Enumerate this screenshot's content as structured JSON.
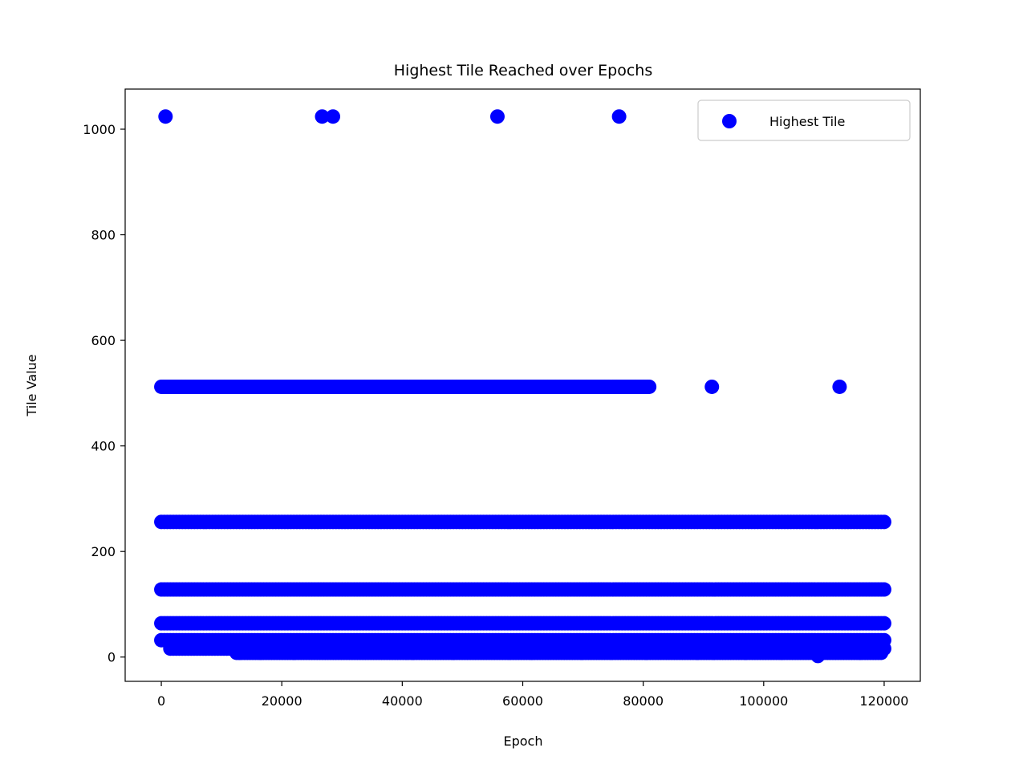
{
  "chart_data": {
    "type": "scatter",
    "title": "Highest Tile Reached over Epochs",
    "xlabel": "Epoch",
    "ylabel": "Tile Value",
    "xlim": [
      -6000,
      126000
    ],
    "ylim": [
      -46,
      1076
    ],
    "xticks": [
      0,
      20000,
      40000,
      60000,
      80000,
      100000,
      120000
    ],
    "yticks": [
      0,
      200,
      400,
      600,
      800,
      1000
    ],
    "grid": false,
    "legend": {
      "position": "top-right",
      "entries": [
        "Highest Tile"
      ]
    },
    "color": "#0000ff",
    "series": [
      {
        "name": "Highest Tile",
        "bands": [
          {
            "y": 512,
            "from": 0,
            "to": 81000
          },
          {
            "y": 256,
            "from": 0,
            "to": 120000
          },
          {
            "y": 128,
            "from": 0,
            "to": 120000
          },
          {
            "y": 64,
            "from": 0,
            "to": 120000
          },
          {
            "y": 32,
            "from": 0,
            "to": 120000
          },
          {
            "y": 16,
            "from": 1500,
            "to": 120000
          },
          {
            "y": 8,
            "from": 12500,
            "to": 119500
          }
        ],
        "points": [
          {
            "x": 700,
            "y": 1024
          },
          {
            "x": 26700,
            "y": 1024
          },
          {
            "x": 28500,
            "y": 1024
          },
          {
            "x": 55800,
            "y": 1024
          },
          {
            "x": 76000,
            "y": 1024
          },
          {
            "x": 91400,
            "y": 512
          },
          {
            "x": 112600,
            "y": 512
          },
          {
            "x": 109000,
            "y": 2
          },
          {
            "x": 13000,
            "y": 8
          },
          {
            "x": 16500,
            "y": 8
          },
          {
            "x": 22000,
            "y": 8
          },
          {
            "x": 41800,
            "y": 8
          },
          {
            "x": 48500,
            "y": 8
          },
          {
            "x": 61500,
            "y": 8
          },
          {
            "x": 69800,
            "y": 8
          },
          {
            "x": 80500,
            "y": 8
          },
          {
            "x": 89000,
            "y": 8
          },
          {
            "x": 97000,
            "y": 8
          },
          {
            "x": 103000,
            "y": 8
          },
          {
            "x": 116000,
            "y": 8
          }
        ]
      }
    ]
  }
}
